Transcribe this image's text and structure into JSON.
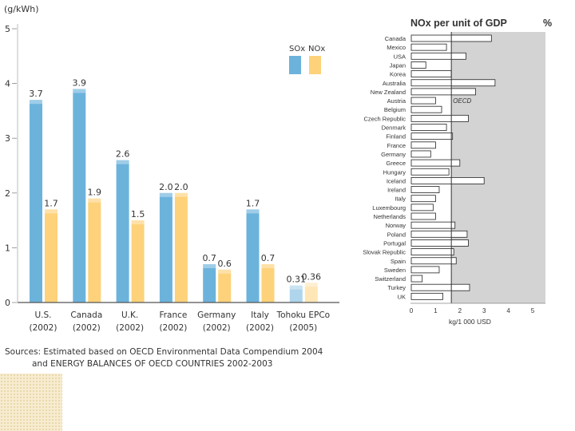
{
  "chart_data": [
    {
      "type": "bar",
      "ylabel": "(g/kWh)",
      "ylim": [
        0,
        5
      ],
      "yticks": [
        "0",
        "1",
        "2",
        "3",
        "4",
        "5"
      ],
      "categories": [
        {
          "name": "U.S.",
          "year": "(2002)"
        },
        {
          "name": "Canada",
          "year": "(2002)"
        },
        {
          "name": "U.K.",
          "year": "(2002)"
        },
        {
          "name": "France",
          "year": "(2002)"
        },
        {
          "name": "Germany",
          "year": "(2002)"
        },
        {
          "name": "Italy",
          "year": "(2002)"
        },
        {
          "name": "Tohoku EPCo",
          "year": "(2005)"
        }
      ],
      "series": [
        {
          "name": "SOx",
          "color": "#6cb3dc",
          "values": [
            3.7,
            3.9,
            2.6,
            2.0,
            0.7,
            1.7,
            0.31
          ],
          "labels": [
            "3.7",
            "3.9",
            "2.6",
            "2.0",
            "0.7",
            "1.7",
            "0.31"
          ]
        },
        {
          "name": "NOx",
          "color": "#fdd27a",
          "values": [
            1.7,
            1.9,
            1.5,
            2.0,
            0.6,
            0.7,
            0.36
          ],
          "labels": [
            "1.7",
            "1.9",
            "1.5",
            "2.0",
            "0.6",
            "0.7",
            "0.36"
          ]
        }
      ],
      "source_line1": "Sources: Estimated based on OECD Environmental Data Compendium 2004",
      "source_line2": "and ENERGY BALANCES OF OECD COUNTRIES 2002-2003"
    },
    {
      "type": "bar",
      "orientation": "horizontal",
      "title": "NOx per unit of GDP",
      "unit_mark": "%",
      "xlabel": "kg/1 000 USD",
      "xlim": [
        0,
        5.5
      ],
      "xticks": [
        "0",
        "1",
        "2",
        "3",
        "4",
        "5"
      ],
      "reference": {
        "label": "OECD",
        "value": 1.65
      },
      "categories": [
        "Canada",
        "Mexico",
        "USA",
        "Japan",
        "Korea",
        "Australia",
        "New Zealand",
        "Austria",
        "Belgium",
        "Czech Republic",
        "Denmark",
        "Finland",
        "France",
        "Germany",
        "Greece",
        "Hungary",
        "Iceland",
        "Ireland",
        "Italy",
        "Luxembourg",
        "Netherlands",
        "Norway",
        "Poland",
        "Portugal",
        "Slovak Republic",
        "Spain",
        "Sweden",
        "Switzerland",
        "Turkey",
        "UK"
      ],
      "values": [
        3.3,
        1.45,
        2.25,
        0.6,
        1.65,
        3.45,
        2.65,
        1.0,
        1.25,
        2.35,
        1.45,
        1.7,
        1.0,
        0.8,
        2.0,
        1.55,
        3.0,
        1.15,
        1.0,
        0.9,
        1.0,
        1.8,
        2.3,
        2.35,
        1.75,
        1.85,
        1.15,
        0.45,
        2.4,
        1.3
      ],
      "bar_color": "#ffffff",
      "background": "#d3d3d3"
    }
  ]
}
